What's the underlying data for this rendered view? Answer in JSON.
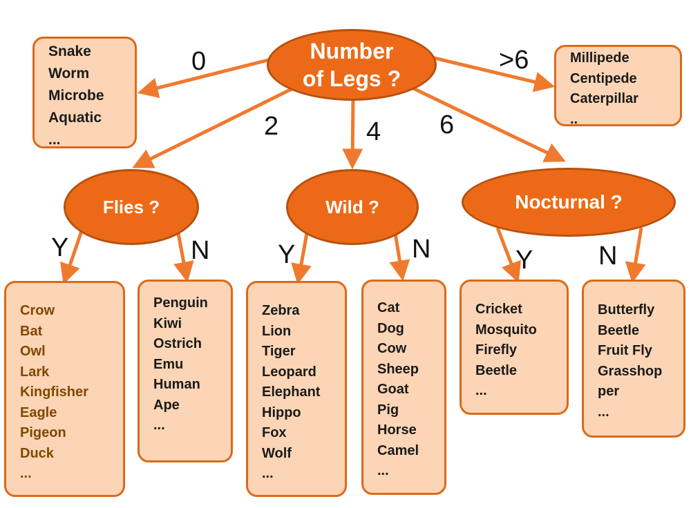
{
  "root": {
    "line1": "Number",
    "line2": "of Legs ?"
  },
  "decisions": {
    "flies": "Flies ?",
    "wild": "Wild ?",
    "nocturnal": "Nocturnal ?"
  },
  "edges": {
    "legs0": "0",
    "legs2": "2",
    "legs4": "4",
    "legs6": "6",
    "legsMore": ">6",
    "fliesY": "Y",
    "fliesN": "N",
    "wildY": "Y",
    "wildN": "N",
    "noctY": "Y",
    "noctN": "N"
  },
  "leaves": {
    "zero": [
      "Snake",
      "Worm",
      "Microbe",
      "Aquatic",
      "..."
    ],
    "many": [
      "Millipede",
      "Centipede",
      "Caterpillar",
      ".."
    ],
    "flies_yes": [
      "Crow",
      "Bat",
      "Owl",
      "Lark",
      "Kingfisher",
      "Eagle",
      "Pigeon",
      "Duck",
      "..."
    ],
    "flies_no": [
      "Penguin",
      "Kiwi",
      "Ostrich",
      "Emu",
      "Human",
      "Ape",
      "..."
    ],
    "wild_yes": [
      "Zebra",
      "Lion",
      "Tiger",
      "Leopard",
      "Elephant",
      "Hippo",
      "Fox",
      "Wolf",
      "..."
    ],
    "wild_no": [
      "Cat",
      "Dog",
      "Cow",
      "Sheep",
      "Goat",
      "Pig",
      "Horse",
      "Camel",
      "..."
    ],
    "nocturnal_yes": [
      "Cricket",
      "Mosquito",
      "Firefly",
      "Beetle",
      "..."
    ],
    "nocturnal_no": [
      "Butterfly",
      "Beetle",
      "Fruit Fly",
      "Grasshop",
      "per",
      "..."
    ]
  },
  "colors": {
    "node_fill": "#ec6a17",
    "node_border": "#b8500f",
    "leaf_fill": "#fbd5b5",
    "leaf_border": "#d96a1c",
    "arrow": "#ef7a2e",
    "brown_text": "#7f4800"
  }
}
